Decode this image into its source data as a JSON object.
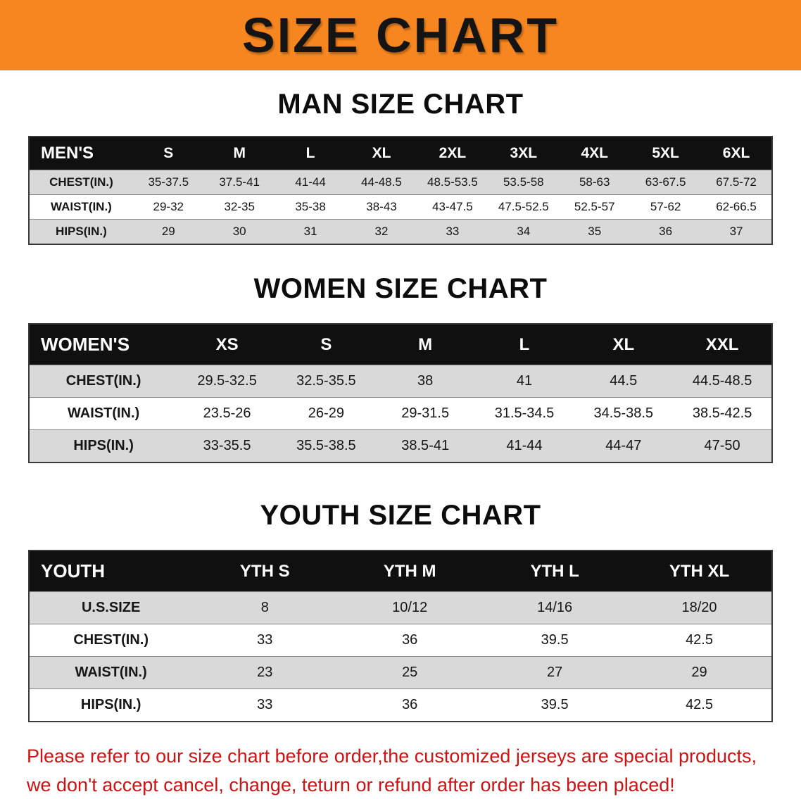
{
  "banner": {
    "title": "SIZE CHART"
  },
  "sections": [
    {
      "id": "men",
      "heading": "MAN SIZE CHART",
      "table": {
        "header": [
          "MEN'S",
          "S",
          "M",
          "L",
          "XL",
          "2XL",
          "3XL",
          "4XL",
          "5XL",
          "6XL"
        ],
        "rows": [
          [
            "CHEST(IN.)",
            "35-37.5",
            "37.5-41",
            "41-44",
            "44-48.5",
            "48.5-53.5",
            "53.5-58",
            "58-63",
            "63-67.5",
            "67.5-72"
          ],
          [
            "WAIST(IN.)",
            "29-32",
            "32-35",
            "35-38",
            "38-43",
            "43-47.5",
            "47.5-52.5",
            "52.5-57",
            "57-62",
            "62-66.5"
          ],
          [
            "HIPS(IN.)",
            "29",
            "30",
            "31",
            "32",
            "33",
            "34",
            "35",
            "36",
            "37"
          ]
        ]
      }
    },
    {
      "id": "women",
      "heading": "WOMEN SIZE CHART",
      "table": {
        "header": [
          "WOMEN'S",
          "XS",
          "S",
          "M",
          "L",
          "XL",
          "XXL"
        ],
        "rows": [
          [
            "CHEST(IN.)",
            "29.5-32.5",
            "32.5-35.5",
            "38",
            "41",
            "44.5",
            "44.5-48.5"
          ],
          [
            "WAIST(IN.)",
            "23.5-26",
            "26-29",
            "29-31.5",
            "31.5-34.5",
            "34.5-38.5",
            "38.5-42.5"
          ],
          [
            "HIPS(IN.)",
            "33-35.5",
            "35.5-38.5",
            "38.5-41",
            "41-44",
            "44-47",
            "47-50"
          ]
        ]
      }
    },
    {
      "id": "youth",
      "heading": "YOUTH SIZE CHART",
      "table": {
        "header": [
          "YOUTH",
          "YTH S",
          "YTH M",
          "YTH L",
          "YTH XL"
        ],
        "rows": [
          [
            "U.S.SIZE",
            "8",
            "10/12",
            "14/16",
            "18/20"
          ],
          [
            "CHEST(IN.)",
            "33",
            "36",
            "39.5",
            "42.5"
          ],
          [
            "WAIST(IN.)",
            "23",
            "25",
            "27",
            "29"
          ],
          [
            "HIPS(IN.)",
            "33",
            "36",
            "39.5",
            "42.5"
          ]
        ]
      }
    }
  ],
  "note": {
    "line1": "Please refer to our size chart before order,the customized jerseys are special products,",
    "line2": "we don't accept cancel, change, teturn or refund after order has been placed!"
  },
  "colors": {
    "banner_bg": "#f6861f",
    "table_header_bg": "#101010",
    "row_stripe": "#d9d9d9",
    "note_red": "#d01212"
  }
}
